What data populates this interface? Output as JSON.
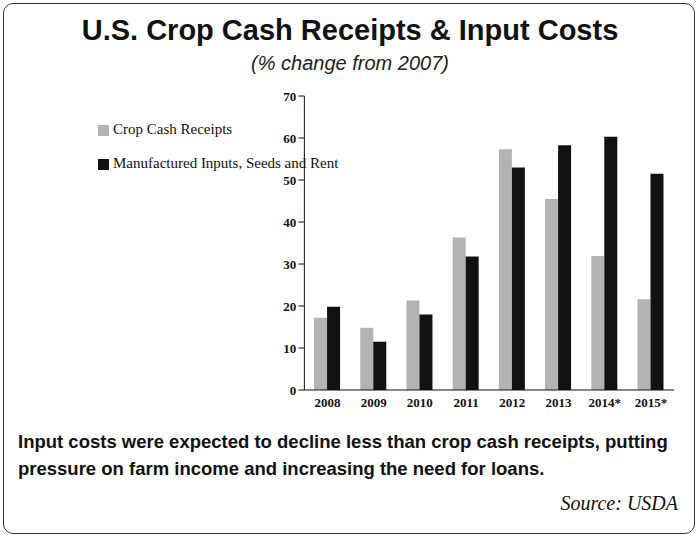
{
  "chart_data": {
    "type": "bar",
    "title": "U.S. Crop Cash Receipts & Input Costs",
    "subtitle": "(% change from 2007)",
    "categories": [
      "2008",
      "2009",
      "2010",
      "2011",
      "2012",
      "2013",
      "2014*",
      "2015*"
    ],
    "series": [
      {
        "name": "Crop Cash Receipts",
        "color": "#b3b3b3",
        "values": [
          17.2,
          14.8,
          21.3,
          36.3,
          57.3,
          45.5,
          31.9,
          21.6
        ]
      },
      {
        "name": "Manufactured Inputs, Seeds and Rent",
        "color": "#111111",
        "values": [
          19.8,
          11.5,
          18,
          31.8,
          53,
          58.3,
          60.3,
          51.5
        ]
      }
    ],
    "ylim": [
      0,
      70
    ],
    "yticks": [
      0,
      10,
      20,
      30,
      40,
      50,
      60,
      70
    ],
    "grid": false,
    "legend": "upper left",
    "caption": "Input costs were expected to decline less than crop cash receipts, putting pressure on farm income and increasing the need for loans.",
    "source": "Source: USDA"
  }
}
